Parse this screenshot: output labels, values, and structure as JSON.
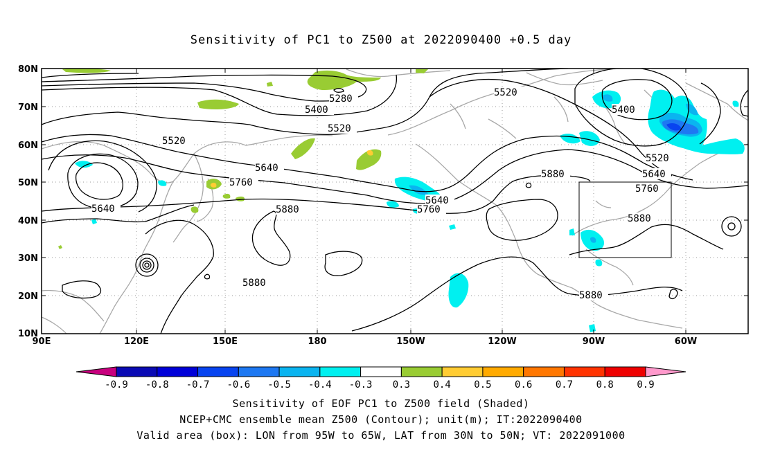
{
  "title": "Sensitivity of PC1 to Z500 at 2022090400 +0.5 day",
  "map": {
    "lon_labels": [
      "90E",
      "120E",
      "150E",
      "180",
      "150W",
      "120W",
      "90W",
      "60W"
    ],
    "lat_labels": [
      "80N",
      "70N",
      "60N",
      "50N",
      "40N",
      "30N",
      "20N",
      "10N"
    ],
    "contour_labels": [
      "5280",
      "5400",
      "5520",
      "5520",
      "5520",
      "5400",
      "5640",
      "5760",
      "5640",
      "5880",
      "5640",
      "5760",
      "5520",
      "5640",
      "5760",
      "5880",
      "5880",
      "5880",
      "5880"
    ],
    "valid_box": {
      "lon_min": "95W",
      "lon_max": "65W",
      "lat_min": "30N",
      "lat_max": "50N"
    }
  },
  "colorbar": {
    "labels": [
      "-0.9",
      "-0.8",
      "-0.7",
      "-0.6",
      "-0.5",
      "-0.4",
      "-0.3",
      "0.3",
      "0.4",
      "0.5",
      "0.6",
      "0.7",
      "0.8",
      "0.9"
    ],
    "colors": [
      "#c8007e",
      "#0a0ab4",
      "#0000d8",
      "#0844f0",
      "#1e78f2",
      "#0ab4f0",
      "#00f0f0",
      "#ffffff",
      "#99cc33",
      "#ffcc33",
      "#ffaa00",
      "#ff7700",
      "#ff3300",
      "#ee0000",
      "#ff99cc"
    ]
  },
  "captions": {
    "line1": "Sensitivity of EOF PC1 to Z500 field (Shaded)",
    "line2": "NCEP+CMC ensemble mean Z500 (Contour); unit(m); IT:2022090400",
    "line3": "Valid area (box): LON from 95W to 65W, LAT from 30N to 50N; VT: 2022091000"
  }
}
